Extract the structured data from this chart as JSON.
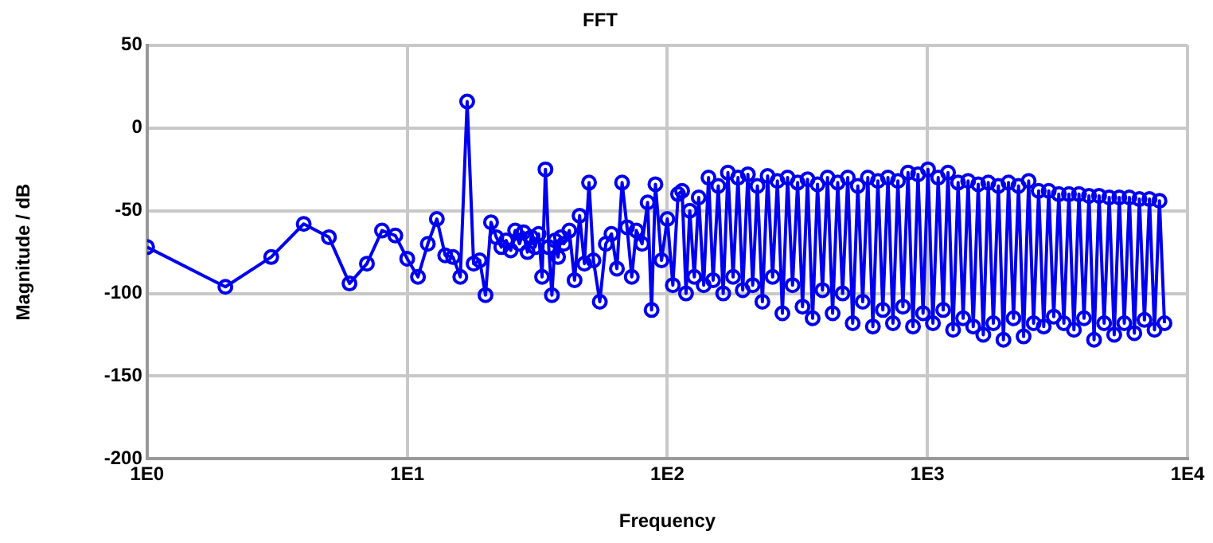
{
  "chart_data": {
    "type": "line",
    "title": "FFT",
    "xlabel": "Frequency",
    "ylabel": "Magnitude / dB",
    "log": "x",
    "grid": true,
    "marker": "circle",
    "color": "#0000ee",
    "xlim": [
      1,
      10000
    ],
    "xticks": [
      {
        "value": 1,
        "label": "1E0"
      },
      {
        "value": 10,
        "label": "1E1"
      },
      {
        "value": 100,
        "label": "1E2"
      },
      {
        "value": 1000,
        "label": "1E3"
      },
      {
        "value": 10000,
        "label": "1E4"
      }
    ],
    "ylim": [
      -200,
      50
    ],
    "yticks": [
      -200,
      -150,
      -100,
      -50,
      0,
      50
    ],
    "x": [
      1,
      2,
      3,
      4,
      5,
      6,
      7,
      8,
      9,
      10,
      11,
      12,
      13,
      14,
      15,
      16,
      17,
      18,
      19,
      20,
      21,
      22,
      23,
      24,
      25,
      26,
      27,
      28,
      29,
      30,
      31,
      32,
      33,
      34,
      35,
      36,
      37,
      38,
      39,
      40,
      42,
      44,
      46,
      48,
      50,
      52,
      55,
      58,
      61,
      64,
      67,
      70,
      73,
      76,
      80,
      84,
      87,
      90,
      95,
      100,
      105,
      110,
      114,
      118,
      122,
      127,
      132,
      138,
      144,
      150,
      157,
      164,
      171,
      179,
      187,
      195,
      204,
      213,
      222,
      232,
      243,
      254,
      265,
      277,
      290,
      303,
      317,
      331,
      346,
      362,
      378,
      395,
      413,
      432,
      452,
      472,
      494,
      516,
      540,
      564,
      590,
      617,
      645,
      674,
      705,
      737,
      770,
      805,
      842,
      880,
      920,
      962,
      1005,
      1050,
      1100,
      1150,
      1200,
      1255,
      1312,
      1372,
      1434,
      1500,
      1568,
      1640,
      1714,
      1792,
      1874,
      1960,
      2050,
      2143,
      2240,
      2343,
      2450,
      2560,
      2677,
      2800,
      2927,
      3060,
      3200,
      3346,
      3500,
      3658,
      3825,
      4000,
      4180,
      4372,
      4570,
      4780,
      5000,
      5226,
      5465,
      5713,
      5975,
      6246,
      6530,
      6830,
      7140,
      7465,
      7800,
      8155
    ],
    "values": [
      -72,
      -96,
      -78,
      -58,
      -66,
      -94,
      -82,
      -62,
      -65,
      -79,
      -90,
      -70,
      -55,
      -77,
      -78,
      -90,
      16,
      -82,
      -80,
      -101,
      -57,
      -66,
      -72,
      -68,
      -74,
      -62,
      -70,
      -63,
      -75,
      -66,
      -72,
      -64,
      -90,
      -25,
      -72,
      -101,
      -68,
      -78,
      -66,
      -70,
      -62,
      -92,
      -53,
      -82,
      -33,
      -80,
      -105,
      -70,
      -64,
      -85,
      -33,
      -60,
      -90,
      -62,
      -70,
      -45,
      -110,
      -34,
      -80,
      -55,
      -95,
      -40,
      -38,
      -100,
      -50,
      -90,
      -42,
      -95,
      -30,
      -92,
      -35,
      -100,
      -27,
      -90,
      -30,
      -98,
      -28,
      -95,
      -35,
      -105,
      -29,
      -90,
      -32,
      -112,
      -30,
      -95,
      -33,
      -108,
      -31,
      -115,
      -34,
      -98,
      -30,
      -112,
      -33,
      -100,
      -30,
      -118,
      -35,
      -105,
      -30,
      -120,
      -32,
      -110,
      -30,
      -118,
      -32,
      -108,
      -27,
      -120,
      -28,
      -112,
      -25,
      -118,
      -30,
      -110,
      -27,
      -122,
      -33,
      -115,
      -32,
      -120,
      -34,
      -125,
      -33,
      -118,
      -35,
      -128,
      -33,
      -115,
      -35,
      -126,
      -32,
      -118,
      -38,
      -120,
      -38,
      -114,
      -40,
      -118,
      -40,
      -122,
      -40,
      -115,
      -41,
      -128,
      -41,
      -118,
      -42,
      -125,
      -42,
      -118,
      -42,
      -124,
      -43,
      -116,
      -43,
      -122,
      -44,
      -118
    ]
  }
}
